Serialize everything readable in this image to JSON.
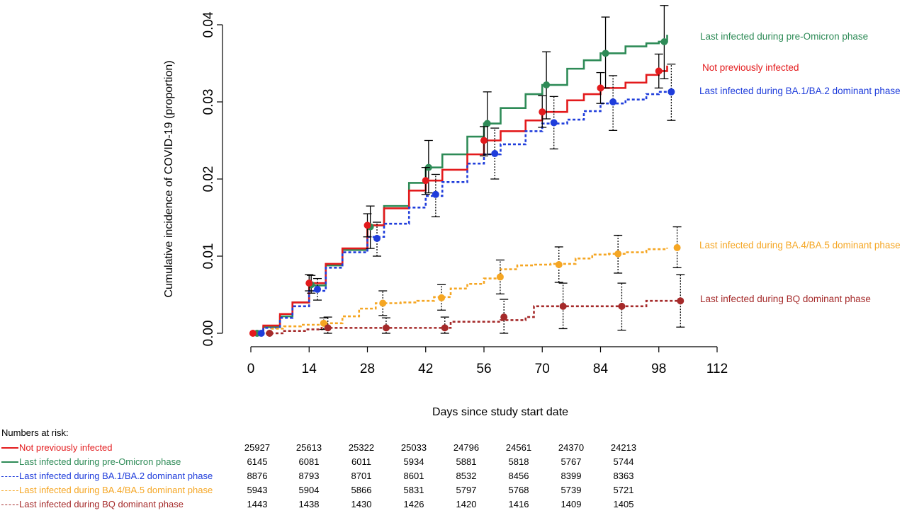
{
  "chart_data": {
    "type": "line",
    "title": "",
    "xlabel": "Days since study start date",
    "ylabel": "Cumulative incidence of COVID-19 (proportion)",
    "xlim": [
      0,
      112
    ],
    "ylim": [
      0,
      0.04
    ],
    "x_ticks": [
      "0",
      "14",
      "28",
      "42",
      "56",
      "70",
      "84",
      "98",
      "112"
    ],
    "x_tick_values": [
      0,
      14,
      28,
      42,
      56,
      70,
      84,
      98,
      112
    ],
    "y_ticks": [
      "0.00",
      "0.01",
      "0.02",
      "0.03",
      "0.04"
    ],
    "y_tick_values": [
      0,
      0.01,
      0.02,
      0.03,
      0.04
    ],
    "grid": false,
    "legend": "right",
    "series": [
      {
        "name": "Last infected during pre-Omicron phase",
        "color": "#2e8b57",
        "dash": false,
        "x": [
          0,
          3,
          7,
          10,
          14,
          18,
          22,
          28,
          32,
          38,
          42,
          46,
          52,
          56,
          60,
          66,
          70,
          76,
          80,
          84,
          90,
          95,
          98,
          100
        ],
        "y": [
          0,
          0.0008,
          0.0022,
          0.004,
          0.0062,
          0.0088,
          0.0108,
          0.014,
          0.0165,
          0.0195,
          0.0215,
          0.0232,
          0.0255,
          0.0272,
          0.0292,
          0.031,
          0.0322,
          0.0343,
          0.0354,
          0.0363,
          0.0372,
          0.0376,
          0.0378,
          0.0387
        ],
        "markers": [
          {
            "x": 1.5,
            "y": 0,
            "lo": 0,
            "hi": 0
          },
          {
            "x": 14.5,
            "y": 0.0063,
            "lo": 0.0052,
            "hi": 0.0075
          },
          {
            "x": 28.7,
            "y": 0.0138,
            "lo": 0.011,
            "hi": 0.0165
          },
          {
            "x": 42.7,
            "y": 0.0215,
            "lo": 0.0182,
            "hi": 0.025
          },
          {
            "x": 56.8,
            "y": 0.0272,
            "lo": 0.0232,
            "hi": 0.0313
          },
          {
            "x": 71,
            "y": 0.0322,
            "lo": 0.0278,
            "hi": 0.0365
          },
          {
            "x": 85.2,
            "y": 0.0363,
            "lo": 0.0318,
            "hi": 0.041
          },
          {
            "x": 99.3,
            "y": 0.0378,
            "lo": 0.033,
            "hi": 0.0425
          }
        ]
      },
      {
        "name": "Not previously infected",
        "color": "#e31a1c",
        "dash": false,
        "x": [
          0,
          3,
          7,
          10,
          14,
          18,
          22,
          28,
          32,
          38,
          42,
          46,
          52,
          56,
          60,
          66,
          70,
          76,
          80,
          84,
          90,
          95,
          98,
          100
        ],
        "y": [
          0,
          0.001,
          0.0025,
          0.004,
          0.0065,
          0.009,
          0.011,
          0.014,
          0.0162,
          0.0185,
          0.0198,
          0.0212,
          0.0232,
          0.025,
          0.0262,
          0.0276,
          0.0287,
          0.0302,
          0.031,
          0.0318,
          0.0325,
          0.0335,
          0.034,
          0.0347
        ],
        "markers": [
          {
            "x": 0.5,
            "y": 0,
            "lo": 0,
            "hi": 0
          },
          {
            "x": 14,
            "y": 0.0065,
            "lo": 0.0055,
            "hi": 0.0076
          },
          {
            "x": 28,
            "y": 0.014,
            "lo": 0.0125,
            "hi": 0.0155
          },
          {
            "x": 42,
            "y": 0.0198,
            "lo": 0.018,
            "hi": 0.0215
          },
          {
            "x": 56,
            "y": 0.025,
            "lo": 0.023,
            "hi": 0.0268
          },
          {
            "x": 70,
            "y": 0.0287,
            "lo": 0.0267,
            "hi": 0.0308
          },
          {
            "x": 84,
            "y": 0.0318,
            "lo": 0.0298,
            "hi": 0.0338
          },
          {
            "x": 98,
            "y": 0.034,
            "lo": 0.0318,
            "hi": 0.0362
          }
        ]
      },
      {
        "name": "Last infected during BA.1/BA.2 dominant phase",
        "color": "#1f3ddb",
        "dash": true,
        "x": [
          0,
          3,
          7,
          10,
          14,
          18,
          22,
          28,
          32,
          38,
          42,
          46,
          52,
          56,
          60,
          66,
          70,
          76,
          80,
          84,
          90,
          95,
          98,
          101
        ],
        "y": [
          0,
          0.0007,
          0.002,
          0.0035,
          0.0055,
          0.0085,
          0.0105,
          0.0125,
          0.0142,
          0.0163,
          0.0178,
          0.0196,
          0.022,
          0.0232,
          0.0245,
          0.0262,
          0.0272,
          0.0277,
          0.0288,
          0.0298,
          0.0303,
          0.031,
          0.0313,
          0.0318
        ],
        "markers": [
          {
            "x": 2.5,
            "y": 0,
            "lo": 0,
            "hi": 0
          },
          {
            "x": 16,
            "y": 0.0057,
            "lo": 0.0043,
            "hi": 0.0071
          },
          {
            "x": 30.3,
            "y": 0.0123,
            "lo": 0.01,
            "hi": 0.0144
          },
          {
            "x": 44.4,
            "y": 0.018,
            "lo": 0.0151,
            "hi": 0.0206
          },
          {
            "x": 58.6,
            "y": 0.0233,
            "lo": 0.02,
            "hi": 0.0266
          },
          {
            "x": 72.8,
            "y": 0.0273,
            "lo": 0.0239,
            "hi": 0.0307
          },
          {
            "x": 87,
            "y": 0.03,
            "lo": 0.0263,
            "hi": 0.0334
          },
          {
            "x": 101,
            "y": 0.0313,
            "lo": 0.0276,
            "hi": 0.0349
          }
        ]
      },
      {
        "name": "Last infected during BA.4/BA.5 dominant phase",
        "color": "#f5a623",
        "dash": true,
        "x": [
          0,
          5,
          8,
          12,
          17,
          22,
          26,
          30,
          36,
          40,
          44,
          48,
          52,
          56,
          60,
          64,
          68,
          72,
          78,
          82,
          86,
          90,
          95,
          100
        ],
        "y": [
          0,
          0.0006,
          0.0009,
          0.0011,
          0.0013,
          0.0022,
          0.0032,
          0.0039,
          0.004,
          0.0042,
          0.0047,
          0.0058,
          0.0064,
          0.0071,
          0.0083,
          0.0088,
          0.0089,
          0.009,
          0.0097,
          0.0102,
          0.0103,
          0.0105,
          0.0109,
          0.0111
        ],
        "markers": [
          {
            "x": 17.5,
            "y": 0.0013,
            "lo": 0.0005,
            "hi": 0.002
          },
          {
            "x": 31.7,
            "y": 0.0039,
            "lo": 0.0023,
            "hi": 0.0055
          },
          {
            "x": 45.8,
            "y": 0.0046,
            "lo": 0.003,
            "hi": 0.0063
          },
          {
            "x": 59.9,
            "y": 0.0073,
            "lo": 0.0051,
            "hi": 0.0095
          },
          {
            "x": 74,
            "y": 0.0089,
            "lo": 0.0066,
            "hi": 0.0112
          },
          {
            "x": 88.2,
            "y": 0.0103,
            "lo": 0.0078,
            "hi": 0.0127
          },
          {
            "x": 102.4,
            "y": 0.0111,
            "lo": 0.0085,
            "hi": 0.0138
          }
        ]
      },
      {
        "name": "Last infected during BQ dominant phase",
        "color": "#a52a2a",
        "dash": true,
        "x": [
          0,
          5,
          8,
          13,
          17,
          25,
          35,
          40,
          44,
          48,
          55,
          60,
          66,
          68,
          75,
          85,
          95,
          103
        ],
        "y": [
          0,
          0,
          0.0003,
          0.0005,
          0.0007,
          0.0007,
          0.0007,
          0.0007,
          0.0007,
          0.0015,
          0.0015,
          0.0017,
          0.0021,
          0.0035,
          0.0035,
          0.0035,
          0.0042,
          0.0042
        ],
        "markers": [
          {
            "x": 4.5,
            "y": 0,
            "lo": 0,
            "hi": 0
          },
          {
            "x": 18.5,
            "y": 0.0007,
            "lo": 0,
            "hi": 0.0021
          },
          {
            "x": 32.5,
            "y": 0.0007,
            "lo": 0,
            "hi": 0.002
          },
          {
            "x": 46.6,
            "y": 0.0007,
            "lo": 0,
            "hi": 0.0021
          },
          {
            "x": 60.8,
            "y": 0.0021,
            "lo": 0,
            "hi": 0.0044
          },
          {
            "x": 75,
            "y": 0.0035,
            "lo": 0.0006,
            "hi": 0.0065
          },
          {
            "x": 89.1,
            "y": 0.0035,
            "lo": 0.0004,
            "hi": 0.0065
          },
          {
            "x": 103.2,
            "y": 0.0042,
            "lo": 0.0008,
            "hi": 0.0076
          }
        ]
      }
    ],
    "legend_order": [
      0,
      1,
      2,
      3,
      4
    ]
  },
  "risk_table": {
    "title": "Numbers at risk:",
    "rows": [
      {
        "label": "Not previously infected",
        "color": "#e31a1c",
        "style": "solid",
        "values": [
          "25927",
          "25613",
          "25322",
          "25033",
          "24796",
          "24561",
          "24370",
          "24213"
        ]
      },
      {
        "label": "Last infected during pre-Omicron phase",
        "color": "#2e8b57",
        "style": "solid",
        "values": [
          "6145",
          "6081",
          "6011",
          "5934",
          "5881",
          "5818",
          "5767",
          "5744"
        ]
      },
      {
        "label": "Last infected during BA.1/BA.2 dominant phase",
        "color": "#1f3ddb",
        "style": "dash",
        "values": [
          "8876",
          "8793",
          "8701",
          "8601",
          "8532",
          "8456",
          "8399",
          "8363"
        ]
      },
      {
        "label": "Last infected during BA.4/BA.5 dominant phase",
        "color": "#f5a623",
        "style": "dash",
        "values": [
          "5943",
          "5904",
          "5866",
          "5831",
          "5797",
          "5768",
          "5739",
          "5721"
        ]
      },
      {
        "label": "Last infected during BQ dominant phase",
        "color": "#a52a2a",
        "style": "dash",
        "values": [
          "1443",
          "1438",
          "1430",
          "1426",
          "1420",
          "1416",
          "1409",
          "1405"
        ]
      }
    ]
  }
}
